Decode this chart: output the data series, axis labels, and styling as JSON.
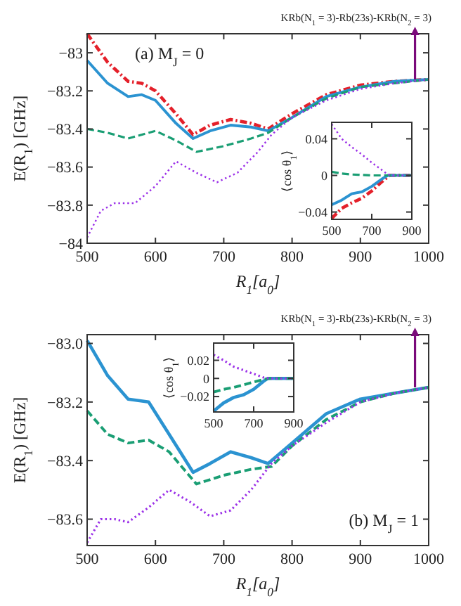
{
  "chart_data": [
    {
      "type": "line",
      "xlabel": "R$_{1}$[a$_{0}$]",
      "ylabel": "E(R$_{1}$) [GHz]",
      "xlim": [
        500,
        1000
      ],
      "xticks": [
        500,
        600,
        700,
        800,
        900,
        1000
      ],
      "ylim": [
        -84,
        -82.9
      ],
      "yticks": [
        -84,
        -83.8,
        -83.6,
        -83.4,
        -83.2,
        -83
      ],
      "annotations": [
        "(a) M$_{J}$ = 0",
        {
          "text": "KRb(N$_{1}$ = 3)-Rb(23s)-KRb(N$_{2}$ = 3)",
          "x": 980,
          "y": -83.14
        }
      ],
      "series": [
        {
          "color": "#e4202a",
          "line_style": "dashdot",
          "x": [
            500,
            530,
            560,
            580,
            600,
            630,
            655,
            680,
            710,
            740,
            765,
            800,
            850,
            900,
            950,
            1000
          ],
          "values": [
            -82.9,
            -83.05,
            -83.15,
            -83.16,
            -83.2,
            -83.32,
            -83.43,
            -83.38,
            -83.35,
            -83.37,
            -83.4,
            -83.32,
            -83.22,
            -83.17,
            -83.15,
            -83.14
          ]
        },
        {
          "color": "#2b93d1",
          "line_style": "solid",
          "x": [
            500,
            530,
            560,
            580,
            600,
            630,
            655,
            680,
            710,
            740,
            765,
            800,
            850,
            900,
            950,
            1000
          ],
          "values": [
            -83.04,
            -83.16,
            -83.23,
            -83.22,
            -83.25,
            -83.37,
            -83.45,
            -83.41,
            -83.38,
            -83.39,
            -83.41,
            -83.34,
            -83.23,
            -83.18,
            -83.15,
            -83.14
          ]
        },
        {
          "color": "#1a9e74",
          "line_style": "dashed",
          "x": [
            500,
            530,
            560,
            600,
            630,
            660,
            700,
            740,
            765,
            800,
            850,
            900,
            950,
            1000
          ],
          "values": [
            -83.4,
            -83.42,
            -83.45,
            -83.41,
            -83.46,
            -83.52,
            -83.49,
            -83.45,
            -83.42,
            -83.34,
            -83.24,
            -83.18,
            -83.16,
            -83.14
          ]
        },
        {
          "color": "#9b30e8",
          "line_style": "dotted",
          "x": [
            500,
            520,
            540,
            570,
            600,
            630,
            660,
            690,
            720,
            750,
            770,
            800,
            850,
            900,
            950,
            1000
          ],
          "values": [
            -83.97,
            -83.83,
            -83.79,
            -83.79,
            -83.7,
            -83.57,
            -83.63,
            -83.68,
            -83.63,
            -83.52,
            -83.43,
            -83.34,
            -83.25,
            -83.19,
            -83.16,
            -83.14
          ]
        }
      ]
    },
    {
      "type": "line",
      "ylabel": "⟨cos θ$_{1}$⟩",
      "xlim": [
        500,
        900
      ],
      "xticks": [
        500,
        700,
        900
      ],
      "ylim": [
        -0.048,
        0.058
      ],
      "yticks": [
        -0.04,
        0,
        0.04
      ],
      "series": [
        {
          "color": "#e4202a",
          "line_style": "dashdot",
          "x": [
            500,
            550,
            600,
            650,
            700,
            750,
            790,
            900
          ],
          "values": [
            -0.047,
            -0.036,
            -0.03,
            -0.025,
            -0.017,
            -0.007,
            0,
            0
          ]
        },
        {
          "color": "#2b93d1",
          "line_style": "solid",
          "x": [
            500,
            550,
            600,
            650,
            700,
            750,
            780,
            900
          ],
          "values": [
            -0.032,
            -0.027,
            -0.02,
            -0.018,
            -0.012,
            -0.004,
            0,
            0
          ]
        },
        {
          "color": "#1a9e74",
          "line_style": "dashed",
          "x": [
            500,
            550,
            600,
            700,
            900
          ],
          "values": [
            0.004,
            0.002,
            0.001,
            0,
            0
          ]
        },
        {
          "color": "#9b30e8",
          "line_style": "dotted",
          "x": [
            500,
            550,
            600,
            650,
            700,
            750,
            780,
            800,
            900
          ],
          "values": [
            0.056,
            0.04,
            0.031,
            0.023,
            0.014,
            0.006,
            0.001,
            0,
            0
          ]
        }
      ]
    },
    {
      "type": "line",
      "xlabel": "R$_{1}$[a$_{0}$]",
      "ylabel": "E(R$_{1}$) [GHz]",
      "xlim": [
        500,
        1000
      ],
      "xticks": [
        500,
        600,
        700,
        800,
        900,
        1000
      ],
      "ylim": [
        -83.69,
        -82.97
      ],
      "yticks": [
        -83.6,
        -83.4,
        -83.2,
        {
          "value": -83,
          "label": "−83.0"
        }
      ],
      "annotations": [
        "(b) M$_{J}$ = 1",
        {
          "text": "KRb(N$_{1}$ = 3)-Rb(23s)-KRb(N$_{2}$ = 3)",
          "x": 980,
          "y": -83.15
        }
      ],
      "series": [
        {
          "color": "#2b93d1",
          "line_style": "solid",
          "x": [
            500,
            530,
            560,
            590,
            620,
            655,
            680,
            710,
            740,
            765,
            800,
            850,
            900,
            950,
            1000
          ],
          "values": [
            -82.99,
            -83.11,
            -83.19,
            -83.2,
            -83.31,
            -83.44,
            -83.41,
            -83.37,
            -83.39,
            -83.41,
            -83.34,
            -83.24,
            -83.19,
            -83.17,
            -83.15
          ]
        },
        {
          "color": "#1a9e74",
          "line_style": "dashed",
          "x": [
            500,
            530,
            560,
            590,
            620,
            660,
            700,
            740,
            770,
            800,
            850,
            900,
            950,
            1000
          ],
          "values": [
            -83.23,
            -83.31,
            -83.34,
            -83.33,
            -83.37,
            -83.48,
            -83.45,
            -83.43,
            -83.42,
            -83.35,
            -83.26,
            -83.2,
            -83.17,
            -83.15
          ]
        },
        {
          "color": "#9b30e8",
          "line_style": "dotted",
          "x": [
            500,
            520,
            540,
            560,
            590,
            620,
            650,
            680,
            710,
            740,
            770,
            800,
            850,
            900,
            950,
            1000
          ],
          "values": [
            -83.68,
            -83.6,
            -83.6,
            -83.61,
            -83.56,
            -83.5,
            -83.54,
            -83.59,
            -83.57,
            -83.5,
            -83.41,
            -83.35,
            -83.27,
            -83.2,
            -83.17,
            -83.15
          ]
        }
      ]
    },
    {
      "type": "line",
      "ylabel": "⟨cos θ$_{1}$⟩",
      "xlim": [
        500,
        900
      ],
      "xticks": [
        500,
        700,
        900
      ],
      "ylim": [
        -0.037,
        0.039
      ],
      "yticks": [
        -0.02,
        0,
        0.02
      ],
      "series": [
        {
          "color": "#2b93d1",
          "line_style": "solid",
          "x": [
            500,
            550,
            600,
            650,
            700,
            750,
            770,
            900
          ],
          "values": [
            -0.036,
            -0.027,
            -0.021,
            -0.018,
            -0.012,
            -0.003,
            0,
            0
          ]
        },
        {
          "color": "#1a9e74",
          "line_style": "dashed",
          "x": [
            500,
            550,
            600,
            650,
            700,
            750,
            780,
            900
          ],
          "values": [
            -0.015,
            -0.012,
            -0.01,
            -0.007,
            -0.004,
            -0.001,
            0,
            0
          ]
        },
        {
          "color": "#9b30e8",
          "line_style": "dotted",
          "x": [
            500,
            550,
            600,
            650,
            700,
            750,
            780,
            900
          ],
          "values": [
            0.026,
            0.02,
            0.013,
            0.009,
            0.005,
            0.001,
            0,
            0
          ]
        }
      ]
    }
  ]
}
